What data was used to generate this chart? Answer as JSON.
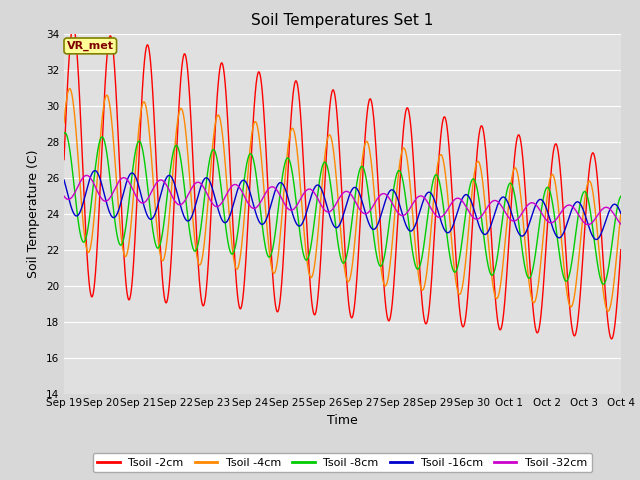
{
  "title": "Soil Temperatures Set 1",
  "xlabel": "Time",
  "ylabel": "Soil Temperature (C)",
  "ylim": [
    14,
    34
  ],
  "yticks": [
    14,
    16,
    18,
    20,
    22,
    24,
    26,
    28,
    30,
    32,
    34
  ],
  "background_color": "#d8d8d8",
  "plot_bg_color": "#e0e0e0",
  "grid_color": "#ffffff",
  "annotation_text": "VR_met",
  "annotation_bg": "#ffff99",
  "annotation_border": "#808000",
  "series": [
    {
      "label": "Tsoil -2cm",
      "color": "#ff0000",
      "lw": 1.0
    },
    {
      "label": "Tsoil -4cm",
      "color": "#ff8800",
      "lw": 1.0
    },
    {
      "label": "Tsoil -8cm",
      "color": "#00cc00",
      "lw": 1.0
    },
    {
      "label": "Tsoil -16cm",
      "color": "#0000cc",
      "lw": 1.0
    },
    {
      "label": "Tsoil -32cm",
      "color": "#cc00cc",
      "lw": 1.0
    }
  ],
  "n_days": 15,
  "points_per_day": 144,
  "x_tick_labels": [
    "Sep 19",
    "Sep 20",
    "Sep 21",
    "Sep 22",
    "Sep 23",
    "Sep 24",
    "Sep 25",
    "Sep 26",
    "Sep 27",
    "Sep 28",
    "Sep 29",
    "Sep 30",
    "Oct 1",
    "Oct 2",
    "Oct 3",
    "Oct 4"
  ],
  "title_fontsize": 11,
  "axis_label_fontsize": 9,
  "tick_fontsize": 7.5,
  "params": {
    "t2cm": {
      "mean_s": 27.0,
      "mean_e": 22.0,
      "amp_s": 7.5,
      "amp_e": 5.0,
      "phase": 0.0
    },
    "t4cm": {
      "mean_s": 26.5,
      "mean_e": 22.0,
      "amp_s": 4.5,
      "amp_e": 3.5,
      "phase": 0.6
    },
    "t8cm": {
      "mean_s": 25.5,
      "mean_e": 22.5,
      "amp_s": 3.0,
      "amp_e": 2.5,
      "phase": 1.4
    },
    "t16cm": {
      "mean_s": 25.2,
      "mean_e": 23.5,
      "amp_s": 1.3,
      "amp_e": 1.0,
      "phase": 2.6
    },
    "t32cm": {
      "mean_s": 25.5,
      "mean_e": 23.8,
      "amp_s": 0.7,
      "amp_e": 0.5,
      "phase": 4.0
    }
  }
}
